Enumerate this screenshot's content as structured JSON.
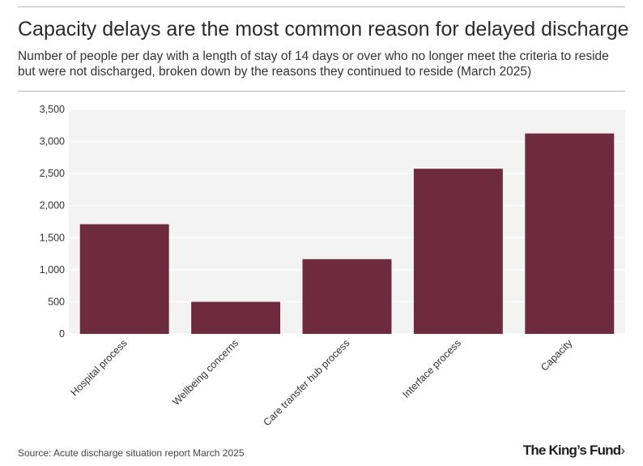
{
  "title": "Capacity delays are the most common reason for delayed discharge",
  "subtitle": "Number of people per day with a length of stay of 14 days or over who no longer meet the criteria to reside but were not discharged, broken down by the reasons they continued to reside (March 2025)",
  "source": "Source: Acute discharge situation report March 2025",
  "logo": {
    "text": "The King’s Fund",
    "arrow": "›"
  },
  "colors": {
    "bar": "#6e2a3e",
    "plot_bg": "#f3f3f3",
    "grid": "#ffffff"
  },
  "chart_data": {
    "type": "bar",
    "title": "Capacity delays are the most common reason for delayed discharge",
    "xlabel": "",
    "ylabel": "",
    "categories": [
      "Hospital process",
      "Wellbeing concerns",
      "Care transfer hub process",
      "Interface process",
      "Capacity"
    ],
    "values": [
      1710,
      500,
      1165,
      2575,
      3125
    ],
    "ylim": [
      0,
      3500
    ],
    "yticks": [
      0,
      500,
      1000,
      1500,
      2000,
      2500,
      3000,
      3500
    ],
    "ytick_labels": [
      "0",
      "500",
      "1,000",
      "1,500",
      "2,000",
      "2,500",
      "3,000",
      "3,500"
    ],
    "grid": true,
    "legend": "none"
  }
}
